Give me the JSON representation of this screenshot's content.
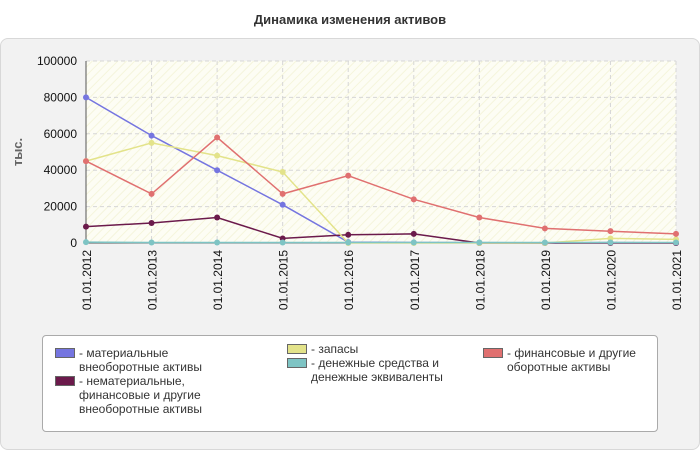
{
  "chart_data": {
    "type": "line",
    "title": "Динамика изменения активов",
    "ylabel": "тыс.",
    "xlabel": "",
    "x": [
      "01.01.2012",
      "01.01.2013",
      "01.01.2014",
      "01.01.2015",
      "01.01.2016",
      "01.01.2017",
      "01.01.2018",
      "01.01.2019",
      "01.01.2020",
      "01.01.2021"
    ],
    "ylim": [
      0,
      100000
    ],
    "yticks": [
      "0",
      "20000",
      "40000",
      "60000",
      "80000",
      "100000"
    ],
    "grid": true,
    "legend_position": "bottom",
    "series": [
      {
        "name": "- материальные внеоборотные активы",
        "color": "#7575e0",
        "values": [
          80000,
          59000,
          40000,
          21000,
          500,
          300,
          200,
          0,
          300,
          100
        ]
      },
      {
        "name": "- нематериальные, финансовые и другие внеоборотные активы",
        "color": "#6b1a4b",
        "values": [
          9000,
          11000,
          14000,
          2500,
          4500,
          5000,
          0,
          0,
          0,
          0
        ]
      },
      {
        "name": "- запасы",
        "color": "#e3e38a",
        "values": [
          45000,
          55000,
          48000,
          39000,
          0,
          0,
          0,
          0,
          2500,
          2000
        ]
      },
      {
        "name": "- денежные средства и денежные эквиваленты",
        "color": "#7ec4c4",
        "values": [
          500,
          300,
          300,
          300,
          300,
          300,
          300,
          300,
          300,
          300
        ]
      },
      {
        "name": "- финансовые и другие оборотные активы",
        "color": "#e07070",
        "values": [
          45000,
          27000,
          58000,
          27000,
          37000,
          24000,
          14000,
          8000,
          6500,
          5000
        ]
      }
    ]
  }
}
